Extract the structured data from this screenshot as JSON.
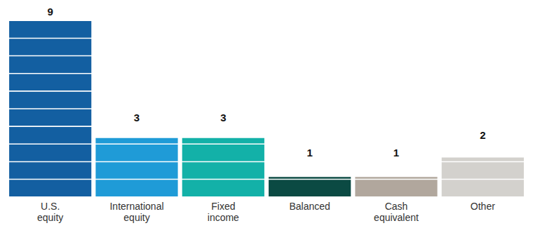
{
  "chart_data": {
    "type": "bar",
    "categories": [
      "U.S.\nequity",
      "International\nequity",
      "Fixed\nincome",
      "Balanced",
      "Cash\nequivalent",
      "Other"
    ],
    "values": [
      9,
      3,
      3,
      1,
      1,
      2
    ],
    "colors": [
      "#135fa1",
      "#1f9bd7",
      "#13b1a8",
      "#0b4a43",
      "#b1a79d",
      "#d3d1cd"
    ],
    "ylim": [
      0,
      9
    ],
    "grid": false,
    "data_labels": true,
    "tick_labels": "x"
  }
}
